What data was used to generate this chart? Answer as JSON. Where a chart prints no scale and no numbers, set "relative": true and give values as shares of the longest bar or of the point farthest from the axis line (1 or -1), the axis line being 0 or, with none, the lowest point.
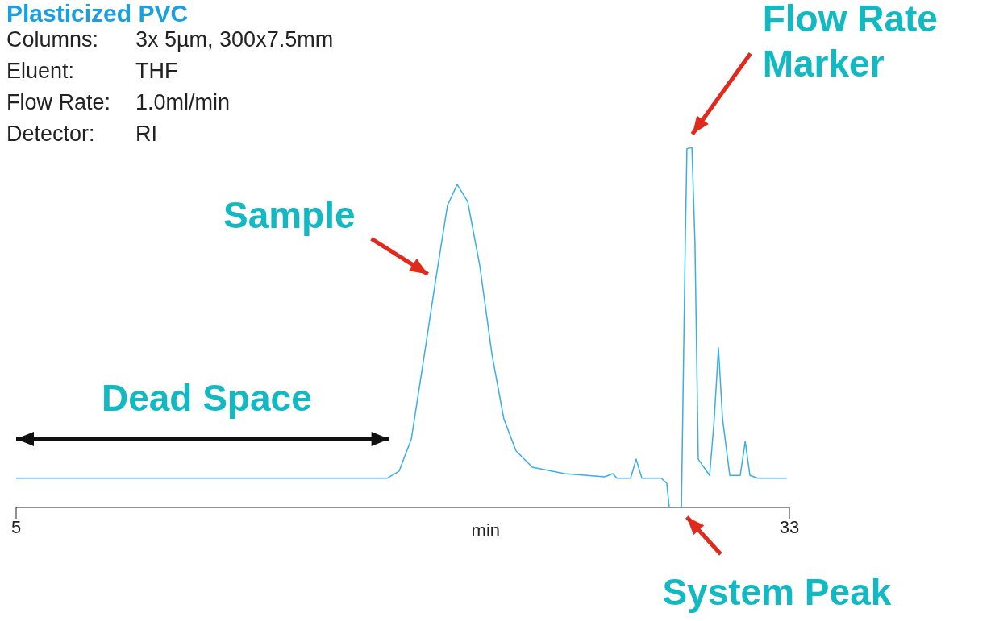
{
  "chart_data": {
    "type": "line",
    "title": "Plasticized PVC",
    "xlabel": "min",
    "relative": true,
    "xlim": [
      5,
      33
    ],
    "xticks": [
      5,
      33
    ],
    "marker": "none",
    "line_style": "solid",
    "series": [
      {
        "color": "#3aaee6",
        "x": [
          5,
          18.43,
          18.87,
          19.31,
          19.74,
          20.18,
          20.62,
          20.97,
          21.35,
          21.79,
          22.23,
          22.66,
          23.1,
          23.69,
          24.85,
          26.31,
          26.61,
          26.75,
          27.25,
          27.45,
          27.66,
          28.36,
          28.56,
          28.65,
          29.09,
          29.23,
          29.29,
          29.47,
          29.58,
          29.7,
          30.11,
          30.28,
          30.43,
          30.58,
          30.84,
          31.22,
          31.4,
          31.57,
          31.86,
          32.91
        ],
        "values": [
          0.081,
          0.081,
          0.101,
          0.19,
          0.403,
          0.626,
          0.839,
          0.897,
          0.85,
          0.671,
          0.425,
          0.246,
          0.157,
          0.112,
          0.094,
          0.085,
          0.094,
          0.081,
          0.081,
          0.134,
          0.081,
          0.081,
          0.067,
          0,
          0,
          0.738,
          0.996,
          1,
          0.738,
          0.134,
          0.089,
          0.246,
          0.443,
          0.246,
          0.089,
          0.089,
          0.183,
          0.089,
          0.081,
          0.081
        ]
      }
    ],
    "annotations": [
      "Columns:",
      "3x 5µm, 300x7.5mm",
      "Eluent:",
      "THF",
      "Flow Rate:",
      "1.0ml/min",
      "Detector:",
      "RI",
      {
        "text": "Sample",
        "x": 20.2,
        "y": 0.63
      },
      {
        "text": "Flow Rate Marker",
        "x": 29.4,
        "y": 1.01
      },
      "Dead Space",
      "System Peak"
    ]
  }
}
